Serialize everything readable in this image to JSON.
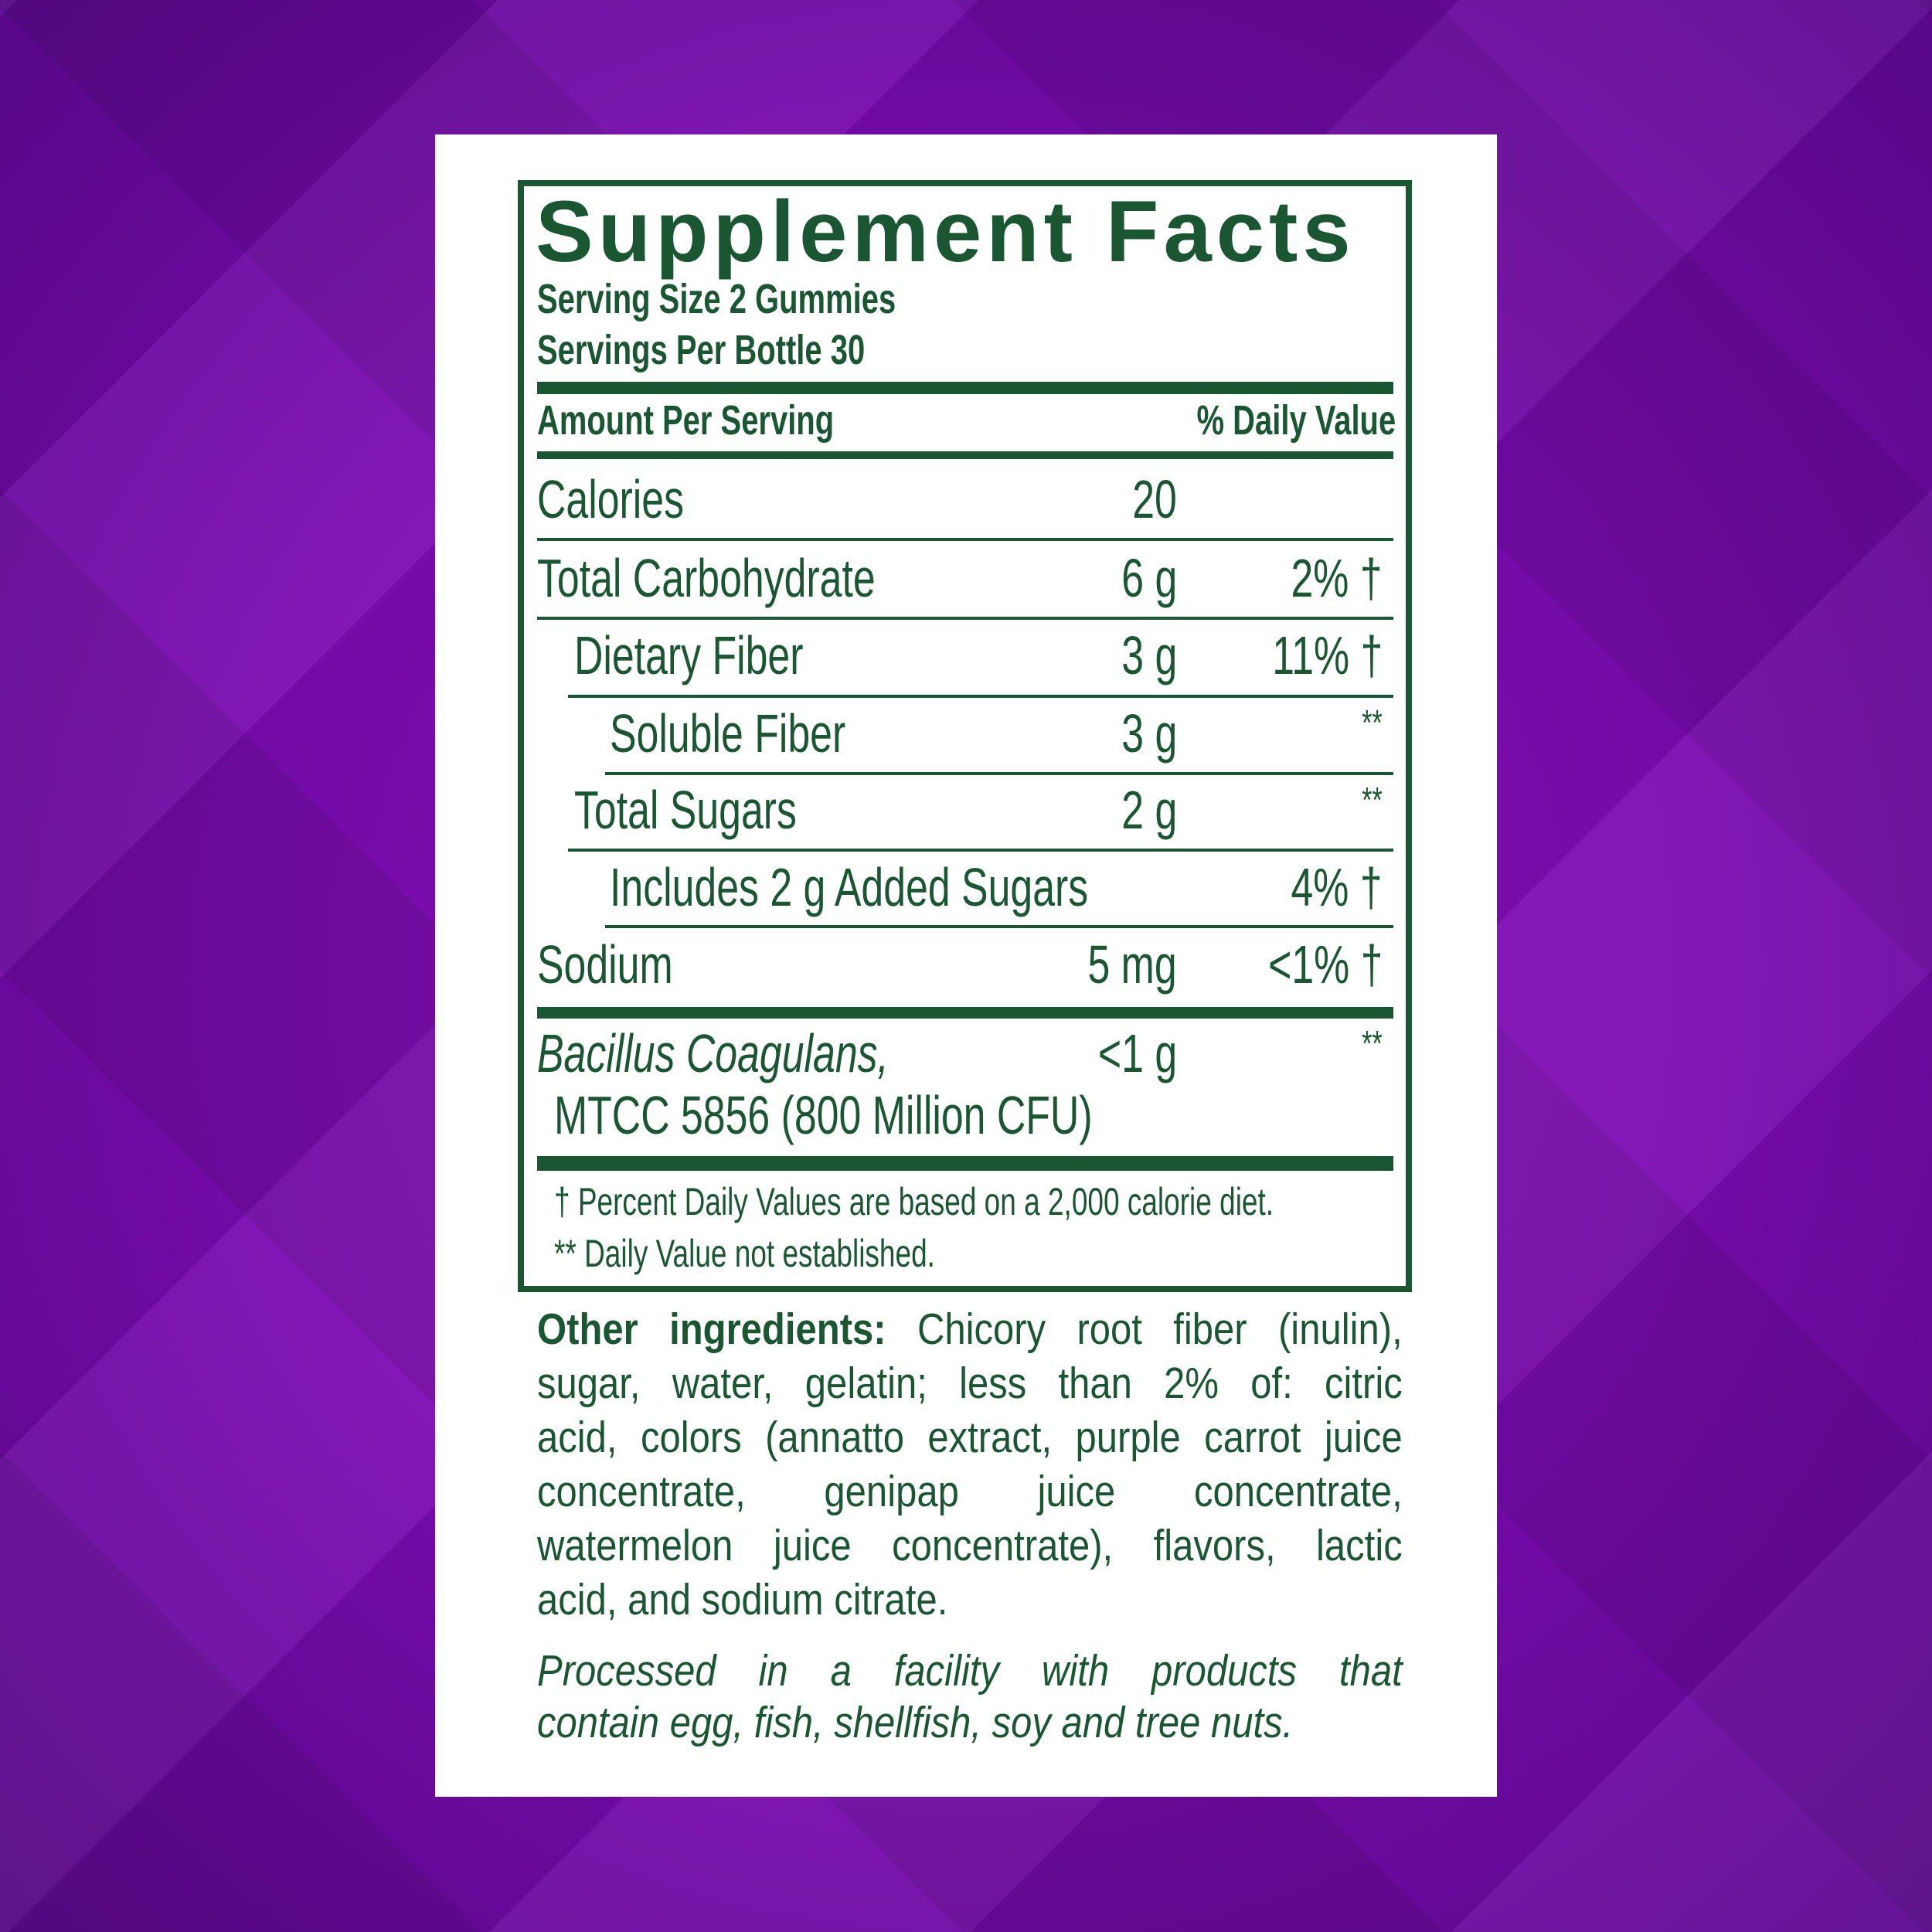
{
  "colors": {
    "text": "#1a5632",
    "background": "#7a0bb0",
    "panel": "#ffffff"
  },
  "title": "Supplement Facts",
  "serving_size": "Serving Size 2 Gummies",
  "servings_per": "Servings Per Bottle 30",
  "header": {
    "amount": "Amount Per Serving",
    "dv": "% Daily Value"
  },
  "rows": [
    {
      "label": "Calories",
      "amount": "20",
      "dv": ""
    },
    {
      "label": "Total Carbohydrate",
      "amount": "6 g",
      "dv": "2% †"
    },
    {
      "label": "Dietary Fiber",
      "amount": "3 g",
      "dv": "11% †"
    },
    {
      "label": "Soluble Fiber",
      "amount": "3 g",
      "dv": "**"
    },
    {
      "label": "Total Sugars",
      "amount": "2 g",
      "dv": "**"
    },
    {
      "label": "Includes 2 g Added Sugars",
      "amount": "",
      "dv": "4% †"
    },
    {
      "label": "Sodium",
      "amount": "5 mg",
      "dv": "<1% †"
    },
    {
      "label": "Bacillus Coagulans,",
      "label2": "MTCC 5856 (800 Million CFU)",
      "amount": "<1 g",
      "dv": "**"
    }
  ],
  "footnotes": [
    "† Percent Daily Values are based on a 2,000 calorie diet.",
    "** Daily Value not established."
  ],
  "ingredients": {
    "label": "Other ingredients:",
    "lines": [
      " Chicory root fiber (inulin),",
      "sugar, water, gelatin; less than 2% of: citric",
      "acid, colors (annatto extract, purple carrot juice",
      "concentrate, genipap juice concentrate,",
      "watermelon juice concentrate), flavors, lactic",
      "acid, and sodium citrate."
    ]
  },
  "allergen": [
    "Processed in a facility with products that",
    "contain egg, fish, shellfish, soy and tree nuts."
  ]
}
